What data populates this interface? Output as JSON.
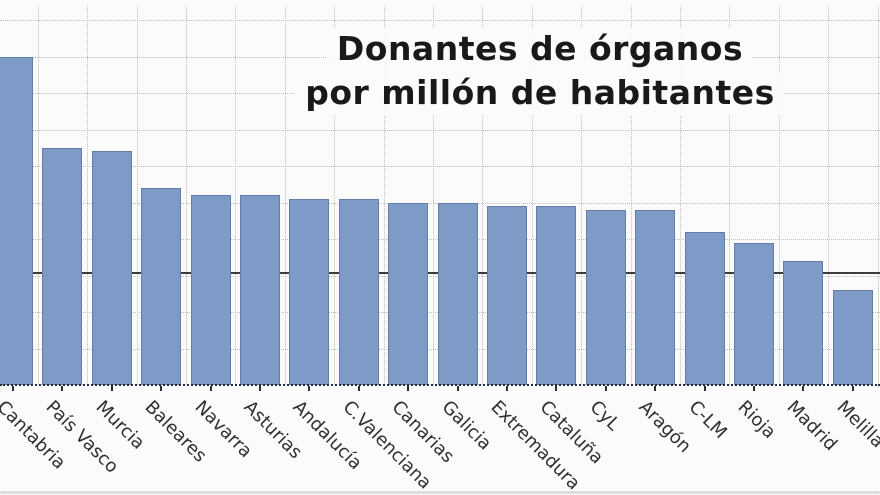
{
  "chart_data": {
    "type": "bar",
    "title": "Donantes de órganos por millón de habitantes",
    "title_lines": [
      "Donantes de órganos",
      "por millón de habitantes"
    ],
    "categories": [
      "Cantabria",
      "País Vasco",
      "Murcia",
      "Baleares",
      "Navarra",
      "Asturias",
      "Andalucía",
      "C.Valenciana",
      "Canarias",
      "Galicia",
      "Extremadura",
      "Cataluña",
      "CyL",
      "Aragón",
      "C-LM",
      "Rioja",
      "Madrid",
      "Melilla"
    ],
    "values": [
      90,
      65,
      64,
      54,
      52,
      52,
      51,
      51,
      50,
      50,
      49,
      49,
      48,
      48,
      42,
      39,
      34,
      26
    ],
    "xlabel": "",
    "ylabel": "",
    "ylim": [
      0,
      100
    ],
    "gridline_step": 10,
    "grid": "dotted",
    "y_tick_labels_visible": false,
    "x_label_rotation_deg": -45,
    "legend": "none",
    "reference_line": {
      "value": 31,
      "style": "solid",
      "color": "#3c3c3c"
    },
    "colors": {
      "bar_fill": "#7e9bc7",
      "bar_border": "#647ea9",
      "grid": "#c0c0c0",
      "axis": "#262c3a",
      "title_text": "#191919",
      "label_text": "#303030",
      "background": "#fbfbfc"
    }
  }
}
